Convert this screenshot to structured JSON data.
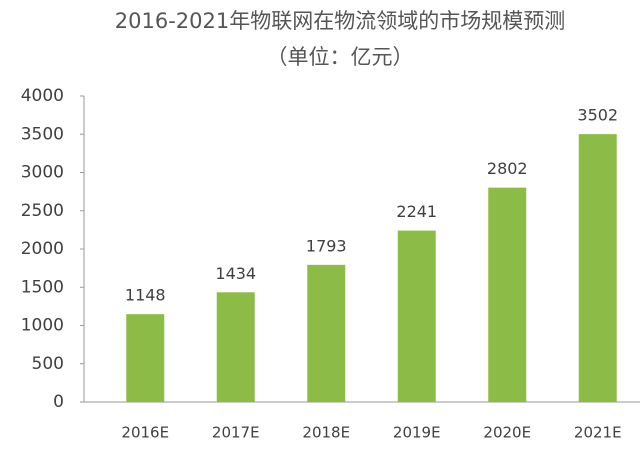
{
  "chart_data": {
    "type": "bar",
    "title": "2016-2021年物联网在物流领域的市场规模预测",
    "subtitle": "（单位：亿元）",
    "categories": [
      "2016E",
      "2017E",
      "2018E",
      "2019E",
      "2020E",
      "2021E"
    ],
    "values": [
      1148,
      1434,
      1793,
      2241,
      2802,
      3502
    ],
    "color": "#8dbb48",
    "ylim": [
      0,
      4000
    ],
    "yticks": [
      0,
      500,
      1000,
      1500,
      2000,
      2500,
      3000,
      3500,
      4000
    ],
    "grid": false
  }
}
